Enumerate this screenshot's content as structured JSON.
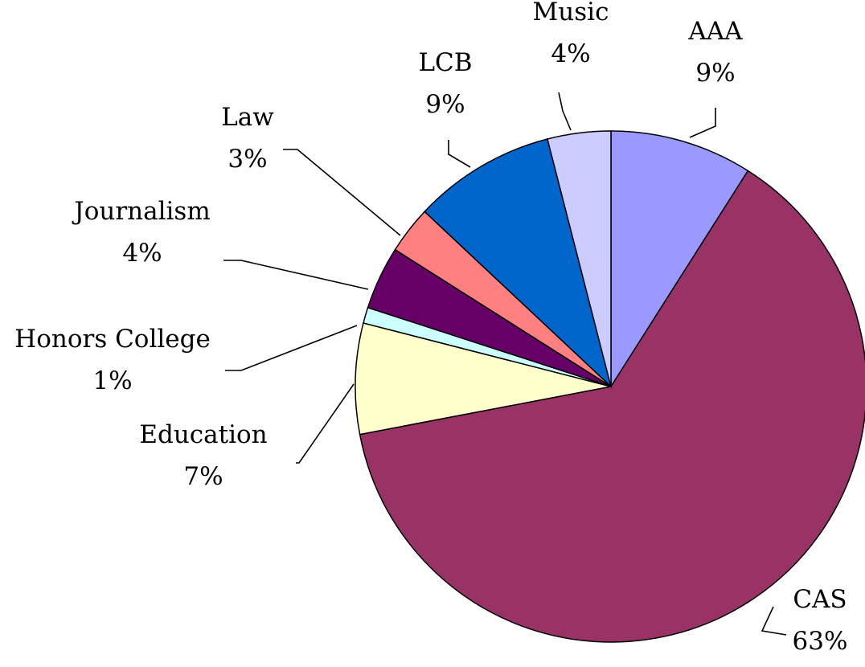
{
  "chart_data": {
    "type": "pie",
    "legend": "none",
    "slices": [
      {
        "label": "AAA",
        "value_label": "9%",
        "value": 9,
        "color": "#9999FF"
      },
      {
        "label": "CAS",
        "value_label": "63%",
        "value": 63,
        "color": "#993366"
      },
      {
        "label": "Education",
        "value_label": "7%",
        "value": 7,
        "color": "#FFFFCC"
      },
      {
        "label": "Honors College",
        "value_label": "1%",
        "value": 1,
        "color": "#CCFFFF"
      },
      {
        "label": "Journalism",
        "value_label": "4%",
        "value": 4,
        "color": "#660066"
      },
      {
        "label": "Law",
        "value_label": "3%",
        "value": 3,
        "color": "#FF8080"
      },
      {
        "label": "LCB",
        "value_label": "9%",
        "value": 9,
        "color": "#0066CC"
      },
      {
        "label": "Music",
        "value_label": "4%",
        "value": 4,
        "color": "#CCCCFF"
      }
    ]
  }
}
